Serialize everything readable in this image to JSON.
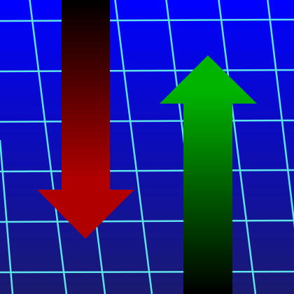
{
  "scene": {
    "background_top_color": "#0000ff",
    "background_bottom_color": "#1a1a70",
    "grid_color": "#5fe3e8",
    "grid_style": "perspective-skewed",
    "icons": [
      {
        "name": "arrow-down-icon",
        "direction": "down",
        "color_top": "#000000",
        "color_bottom": "#b00000"
      },
      {
        "name": "arrow-up-icon",
        "direction": "up",
        "color_top": "#00b400",
        "color_bottom": "#000000"
      }
    ]
  }
}
